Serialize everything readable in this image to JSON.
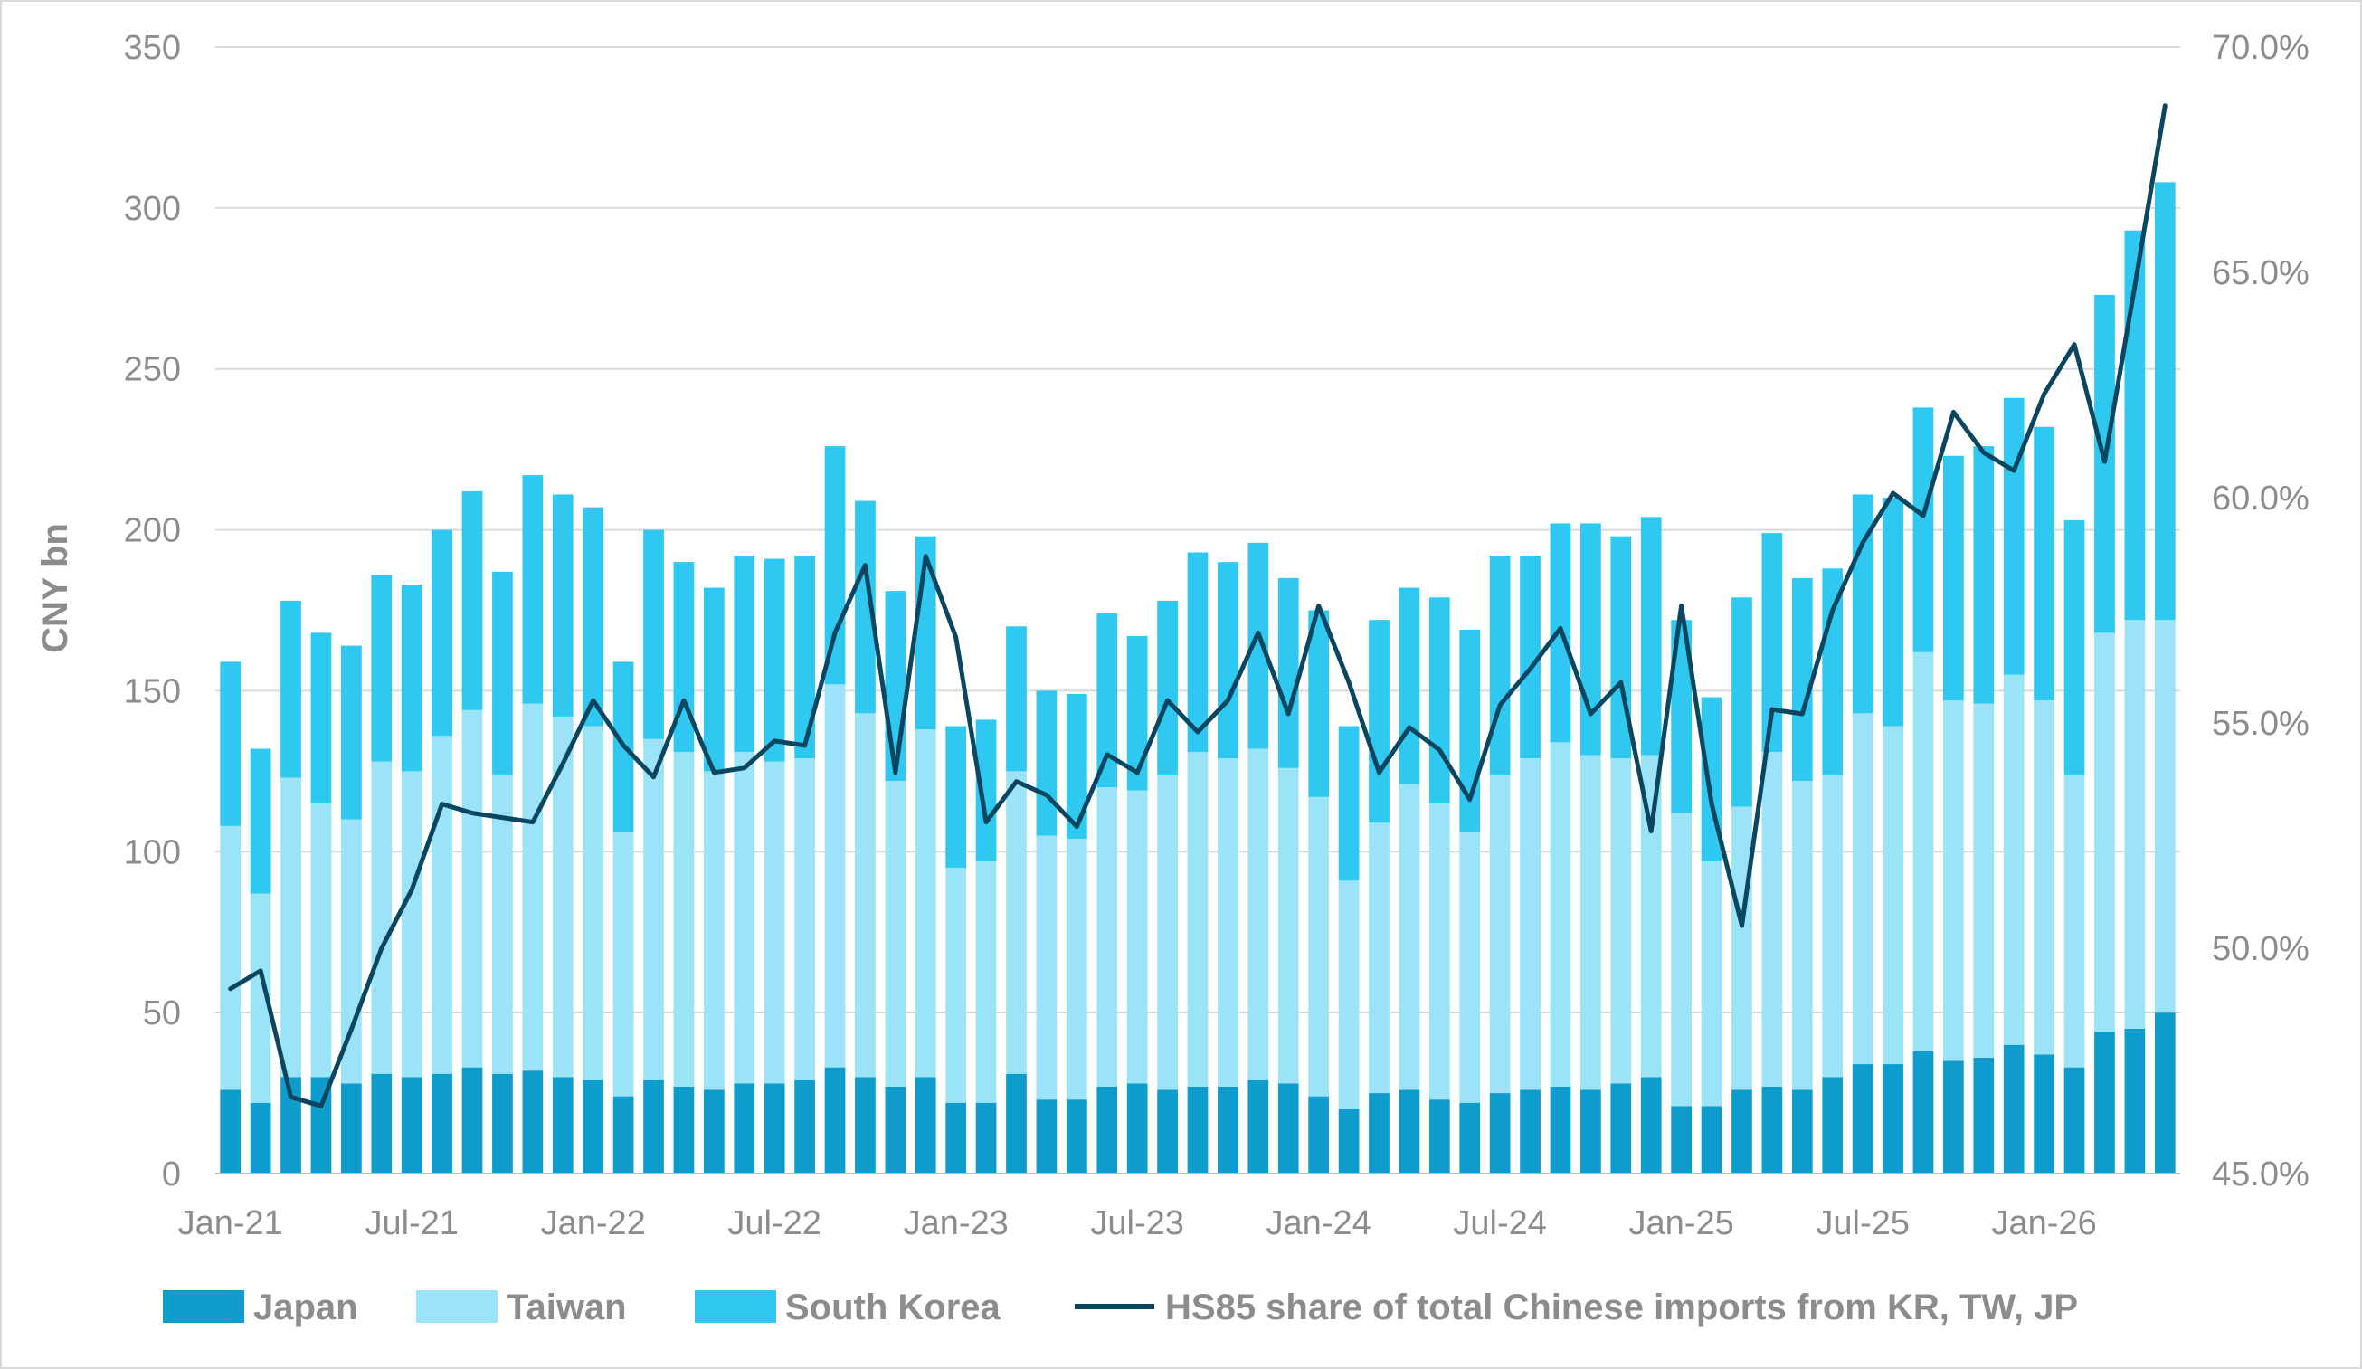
{
  "chart_data": {
    "type": "bar",
    "stacked": true,
    "x": [
      "Jan-21",
      "Feb-21",
      "Mar-21",
      "Apr-21",
      "May-21",
      "Jun-21",
      "Jul-21",
      "Aug-21",
      "Sep-21",
      "Oct-21",
      "Nov-21",
      "Dec-21",
      "Jan-22",
      "Feb-22",
      "Mar-22",
      "Apr-22",
      "May-22",
      "Jun-22",
      "Jul-22",
      "Aug-22",
      "Sep-22",
      "Oct-22",
      "Nov-22",
      "Dec-22",
      "Jan-23",
      "Feb-23",
      "Mar-23",
      "Apr-23",
      "May-23",
      "Jun-23",
      "Jul-23",
      "Aug-23",
      "Sep-23",
      "Oct-23",
      "Nov-23",
      "Dec-23",
      "Jan-24",
      "Feb-24",
      "Mar-24",
      "Apr-24",
      "May-24",
      "Jun-24",
      "Jul-24",
      "Aug-24",
      "Sep-24",
      "Oct-24",
      "Nov-24",
      "Dec-24",
      "Jan-25",
      "Feb-25",
      "Mar-25",
      "Apr-25",
      "May-25",
      "Jun-25",
      "Jul-25",
      "Aug-25",
      "Sep-25",
      "Oct-25",
      "Nov-25",
      "Dec-25",
      "Jan-26",
      "Feb-26",
      "Mar-26",
      "Apr-26",
      "May-26"
    ],
    "x_tick_labels": [
      "Jan-21",
      "Jul-21",
      "Jan-22",
      "Jul-22",
      "Jan-23",
      "Jul-23",
      "Jan-24",
      "Jul-24",
      "Jan-25",
      "Jul-25",
      "Jan-26"
    ],
    "series": [
      {
        "name": "Japan",
        "type": "bar",
        "color": "#0e9ccc",
        "values": [
          26,
          22,
          30,
          30,
          28,
          31,
          30,
          31,
          33,
          31,
          32,
          30,
          29,
          24,
          29,
          27,
          26,
          28,
          28,
          29,
          33,
          30,
          27,
          30,
          22,
          22,
          31,
          23,
          23,
          27,
          28,
          26,
          27,
          27,
          29,
          28,
          24,
          20,
          25,
          26,
          23,
          22,
          25,
          26,
          27,
          26,
          28,
          30,
          21,
          21,
          26,
          27,
          26,
          30,
          34,
          34,
          38,
          35,
          36,
          40,
          37,
          33,
          44,
          45,
          50
        ]
      },
      {
        "name": "Taiwan",
        "type": "bar",
        "color": "#9be3f7",
        "values": [
          82,
          65,
          93,
          85,
          82,
          97,
          95,
          105,
          111,
          93,
          114,
          112,
          110,
          82,
          106,
          104,
          99,
          103,
          100,
          100,
          119,
          113,
          95,
          108,
          73,
          75,
          94,
          82,
          81,
          93,
          91,
          98,
          104,
          102,
          103,
          98,
          93,
          71,
          84,
          95,
          92,
          84,
          99,
          103,
          107,
          104,
          101,
          100,
          91,
          76,
          88,
          104,
          96,
          94,
          109,
          105,
          124,
          112,
          110,
          115,
          110,
          91,
          124,
          127,
          122
        ]
      },
      {
        "name": "South Korea",
        "type": "bar",
        "color": "#2ec8f0",
        "values": [
          51,
          45,
          55,
          53,
          54,
          58,
          58,
          64,
          68,
          63,
          71,
          69,
          68,
          53,
          65,
          59,
          57,
          61,
          63,
          63,
          74,
          66,
          59,
          60,
          44,
          44,
          45,
          45,
          45,
          54,
          48,
          54,
          62,
          61,
          64,
          59,
          58,
          48,
          63,
          61,
          64,
          63,
          68,
          63,
          68,
          72,
          69,
          74,
          60,
          51,
          65,
          68,
          63,
          64,
          68,
          71,
          76,
          76,
          80,
          86,
          85,
          79,
          105,
          121,
          136
        ]
      },
      {
        "name": "HS85 share of total Chinese imports from KR, TW, JP",
        "type": "line",
        "color": "#0b4660",
        "axis": "right",
        "values": [
          49.1,
          49.5,
          46.7,
          46.5,
          48.2,
          50.0,
          51.3,
          53.2,
          53.0,
          52.9,
          52.8,
          54.1,
          55.5,
          54.5,
          53.8,
          55.5,
          53.9,
          54.0,
          54.6,
          54.5,
          57.0,
          58.5,
          53.9,
          58.7,
          56.9,
          52.8,
          53.7,
          53.4,
          52.7,
          54.3,
          53.9,
          55.5,
          54.8,
          55.5,
          57.0,
          55.2,
          57.6,
          55.9,
          53.9,
          54.9,
          54.4,
          53.3,
          55.4,
          56.2,
          57.1,
          55.2,
          55.9,
          52.6,
          57.6,
          53.2,
          50.5,
          55.3,
          55.2,
          57.5,
          59.0,
          60.1,
          59.6,
          61.9,
          61.0,
          60.6,
          62.3,
          63.4,
          60.8,
          64.7,
          68.7
        ]
      }
    ],
    "ylabel": "CNY bn",
    "ylim": [
      0,
      350
    ],
    "y_ticks": [
      "0",
      "50",
      "100",
      "150",
      "200",
      "250",
      "300",
      "350"
    ],
    "y2lim": [
      45.0,
      70.0
    ],
    "y2_ticks": [
      "45.0%",
      "50.0%",
      "55.0%",
      "60.0%",
      "65.0%",
      "70.0%"
    ],
    "grid": "horizontal",
    "legend_position": "bottom"
  }
}
